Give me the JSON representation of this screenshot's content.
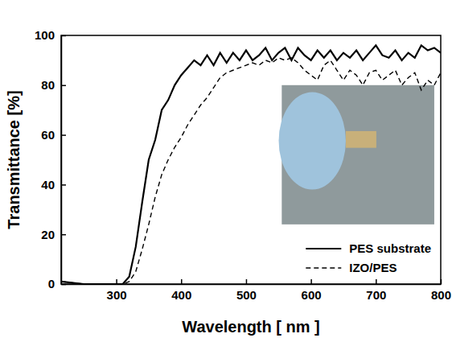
{
  "chart_data": {
    "type": "line",
    "x_label": "Wavelength [ nm ]",
    "y_label": "Transmittance [%]",
    "x": [
      215,
      250,
      300,
      310,
      320,
      330,
      340,
      350,
      360,
      370,
      380,
      390,
      400,
      410,
      420,
      430,
      440,
      450,
      460,
      470,
      480,
      490,
      500,
      510,
      520,
      530,
      540,
      550,
      560,
      570,
      580,
      590,
      600,
      610,
      620,
      630,
      640,
      650,
      660,
      670,
      680,
      690,
      700,
      710,
      720,
      730,
      740,
      750,
      760,
      770,
      780,
      790,
      800
    ],
    "series": [
      {
        "name": "PES substrate",
        "color": "#000000",
        "line_style": "solid",
        "values": [
          1,
          0,
          0,
          0,
          3,
          15,
          33,
          50,
          58,
          70,
          74,
          80,
          84,
          87,
          90,
          88,
          92,
          88,
          93,
          89,
          93,
          90,
          94,
          90,
          92,
          95,
          90,
          93,
          95,
          90,
          95,
          92,
          90,
          94,
          91,
          94,
          90,
          93,
          91,
          94,
          90,
          93,
          96,
          92,
          91,
          94,
          90,
          93,
          91,
          96,
          94,
          95,
          93
        ]
      },
      {
        "name": "IZO/PES",
        "color": "#000000",
        "line_style": "dashed",
        "values": [
          1,
          0,
          0,
          0,
          1,
          5,
          14,
          24,
          35,
          44,
          50,
          55,
          59,
          64,
          68,
          72,
          75,
          79,
          83,
          85,
          86,
          87,
          88,
          89,
          88,
          90,
          89,
          91,
          90,
          91,
          89,
          86,
          84,
          82,
          88,
          90,
          86,
          82,
          86,
          84,
          80,
          85,
          86,
          82,
          84,
          86,
          80,
          83,
          85,
          78,
          82,
          80,
          85
        ]
      }
    ],
    "xlim": [
      215,
      800
    ],
    "xticks": [
      300,
      400,
      500,
      600,
      700,
      800
    ],
    "ylim": [
      0,
      100
    ],
    "yticks": [
      0,
      20,
      40,
      60,
      80,
      100
    ],
    "grid": false,
    "legend": "lower right"
  }
}
